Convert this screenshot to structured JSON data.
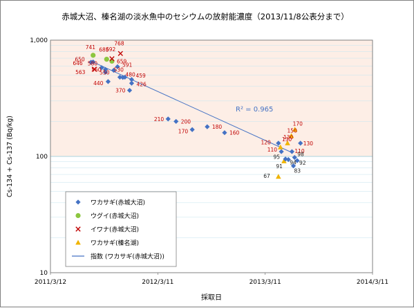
{
  "chart_data": {
    "type": "scatter",
    "title": "赤城大沼、榛名湖の淡水魚中のセシウムの放射能濃度（2013/11/8公表分まで）",
    "xlabel": "採取日",
    "ylabel": "Cs-134 + Cs-137 (Bq/kg)",
    "y_scale": "log",
    "ylim": [
      10,
      1000
    ],
    "xlim": [
      "2011-03-12",
      "2014-03-11"
    ],
    "x_ticks": [
      "2011/3/12",
      "2012/3/11",
      "2013/3/11",
      "2014/3/11"
    ],
    "y_ticks": [
      "10",
      "100",
      "1,000"
    ],
    "grid": true,
    "legend_position": "left-bottom",
    "annotation": "R² = 0.965",
    "colors": {
      "series_0": "#4472c4",
      "series_1": "#8cc63f",
      "series_2": "#c00000",
      "series_3": "#f0b400",
      "trendline": "#4472c4",
      "label_red": "#c00000",
      "label_dark": "#222222",
      "band_top": "#fdeee6"
    },
    "series": [
      {
        "name": "ワカサギ(赤城大沼)",
        "marker": "diamond",
        "points": [
          {
            "x": "2011-07-28",
            "y": 646,
            "label": "646"
          },
          {
            "x": "2011-08-04",
            "y": 650,
            "label": "650"
          },
          {
            "x": "2011-09-02",
            "y": 580,
            "label": "580"
          },
          {
            "x": "2011-09-15",
            "y": 560,
            "label": "560"
          },
          {
            "x": "2011-09-15",
            "y": 530,
            "label": "530"
          },
          {
            "x": "2011-09-24",
            "y": 440,
            "label": "440"
          },
          {
            "x": "2011-10-13",
            "y": 550,
            "label": "550"
          },
          {
            "x": "2011-10-26",
            "y": 591,
            "label": "591"
          },
          {
            "x": "2011-11-03",
            "y": 480,
            "label": "480"
          },
          {
            "x": "2011-11-13",
            "y": 478,
            "label": ""
          },
          {
            "x": "2011-11-20",
            "y": 480,
            "label": ""
          },
          {
            "x": "2011-12-06",
            "y": 370,
            "label": "370"
          },
          {
            "x": "2011-12-13",
            "y": 426,
            "label": "426"
          },
          {
            "x": "2011-12-13",
            "y": 459,
            "label": "459"
          },
          {
            "x": "2012-04-15",
            "y": 210,
            "label": "210"
          },
          {
            "x": "2012-05-12",
            "y": 200,
            "label": "200"
          },
          {
            "x": "2012-07-06",
            "y": 170,
            "label": "170"
          },
          {
            "x": "2012-08-26",
            "y": 180,
            "label": "180"
          },
          {
            "x": "2012-10-24",
            "y": 160,
            "label": "160"
          },
          {
            "x": "2013-04-25",
            "y": 130,
            "label": "130"
          },
          {
            "x": "2013-05-05",
            "y": 110,
            "label": "110"
          },
          {
            "x": "2013-05-19",
            "y": 95,
            "label": "95"
          },
          {
            "x": "2013-05-29",
            "y": 94,
            "label": "94"
          },
          {
            "x": "2013-06-10",
            "y": 110,
            "label": "110"
          },
          {
            "x": "2013-06-15",
            "y": 83,
            "label": "83"
          },
          {
            "x": "2013-06-19",
            "y": 98,
            "label": "98"
          },
          {
            "x": "2013-06-28",
            "y": 92,
            "label": "92"
          },
          {
            "x": "2013-07-09",
            "y": 130,
            "label": "130"
          }
        ]
      },
      {
        "name": "ウグイ(赤城大沼)",
        "marker": "circle",
        "points": [
          {
            "x": "2011-08-04",
            "y": 741,
            "label": "741"
          },
          {
            "x": "2011-09-19",
            "y": 685,
            "label": "685"
          },
          {
            "x": "2011-10-07",
            "y": 659,
            "label": "659"
          }
        ]
      },
      {
        "name": "イワナ(赤城大沼)",
        "marker": "x",
        "points": [
          {
            "x": "2011-08-08",
            "y": 563,
            "label": "563"
          },
          {
            "x": "2011-10-07",
            "y": 692,
            "label": "692"
          },
          {
            "x": "2011-11-05",
            "y": 768,
            "label": "768"
          }
        ]
      },
      {
        "name": "ワカサギ(榛名湖)",
        "marker": "triangle",
        "points": [
          {
            "x": "2013-04-25",
            "y": 67,
            "label": "67"
          },
          {
            "x": "2013-05-02",
            "y": 120,
            "label": "120"
          },
          {
            "x": "2013-05-14",
            "y": 91,
            "label": "91"
          },
          {
            "x": "2013-05-26",
            "y": 130,
            "label": "130"
          },
          {
            "x": "2013-06-08",
            "y": 150,
            "label": "150"
          },
          {
            "x": "2013-06-20",
            "y": 170,
            "label": "170"
          }
        ]
      },
      {
        "name": "指数 (ワカサギ(赤城大沼))",
        "type": "trendline",
        "model": "exponential",
        "points": [
          {
            "x": "2011-07-28",
            "y": 660
          },
          {
            "x": "2013-06-10",
            "y": 108
          }
        ]
      }
    ]
  }
}
